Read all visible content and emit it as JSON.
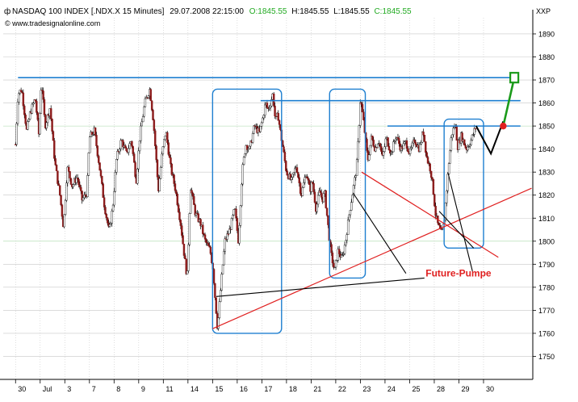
{
  "header": {
    "symbol": "NASDAQ 100 INDEX [.NDX.X  15 Minutes]",
    "datetime": "29.07.2008 22:15:00",
    "open": "O:1845.55",
    "high": "H:1845.55",
    "low": "L:1845.55",
    "close": "C:1845.55",
    "credit": "© www.tradesignalonline.com"
  },
  "colors": {
    "background": "#ffffff",
    "bull_candle": "#ffffff",
    "bear_candle": "#8b1a1a",
    "wick": "#000000",
    "blue_lines": "#1e7fd0",
    "red_lines": "#e02020",
    "black_lines": "#000000",
    "forecast_green": "#1a9a1a",
    "annotation_red": "#e02020",
    "grid": "#c8c8c8",
    "grid_highlight": "#a9d8a9",
    "ohlc_green": "#22aa22"
  },
  "chart_data": {
    "type": "candlestick",
    "title": "NASDAQ 100 INDEX [.NDX.X  15 Minutes]",
    "ylabel": "XXP",
    "xlabel": "",
    "ylim": [
      1740,
      1897
    ],
    "y_ticks": [
      1750,
      1760,
      1770,
      1780,
      1790,
      1800,
      1810,
      1820,
      1830,
      1840,
      1850,
      1860,
      1870,
      1880,
      1890
    ],
    "x_sessions": [
      "30",
      "Jul",
      "3",
      "7",
      "8",
      "9",
      "11",
      "14",
      "15",
      "16",
      "17",
      "18",
      "21",
      "22",
      "23",
      "24",
      "25",
      "28",
      "29",
      "30"
    ],
    "x_labels": [
      "30",
      "Jul",
      "3",
      "7",
      "8",
      "9",
      "11",
      "14",
      "15",
      "16",
      "17",
      "18",
      "21",
      "22",
      "23",
      "24",
      "25",
      "28",
      "29",
      "30"
    ],
    "x_range": [
      -0.5,
      21
    ],
    "grid": true,
    "close_path": [
      [
        0,
        1842
      ],
      [
        0.1,
        1864
      ],
      [
        0.25,
        1866
      ],
      [
        0.45,
        1848
      ],
      [
        0.6,
        1856
      ],
      [
        0.8,
        1862
      ],
      [
        0.95,
        1846
      ],
      [
        1.05,
        1870
      ],
      [
        1.2,
        1850
      ],
      [
        1.4,
        1858
      ],
      [
        1.6,
        1834
      ],
      [
        1.8,
        1820
      ],
      [
        1.95,
        1806
      ],
      [
        2.1,
        1832
      ],
      [
        2.3,
        1824
      ],
      [
        2.5,
        1828
      ],
      [
        2.7,
        1818
      ],
      [
        2.9,
        1821
      ],
      [
        3.0,
        1845
      ],
      [
        3.2,
        1848
      ],
      [
        3.4,
        1833
      ],
      [
        3.6,
        1816
      ],
      [
        3.8,
        1804
      ],
      [
        3.95,
        1815
      ],
      [
        4.1,
        1836
      ],
      [
        4.3,
        1844
      ],
      [
        4.5,
        1838
      ],
      [
        4.7,
        1844
      ],
      [
        4.9,
        1826
      ],
      [
        5.05,
        1846
      ],
      [
        5.25,
        1860
      ],
      [
        5.45,
        1866
      ],
      [
        5.6,
        1852
      ],
      [
        5.8,
        1822
      ],
      [
        5.95,
        1838
      ],
      [
        6.1,
        1848
      ],
      [
        6.3,
        1832
      ],
      [
        6.5,
        1822
      ],
      [
        6.7,
        1808
      ],
      [
        6.85,
        1794
      ],
      [
        6.97,
        1784
      ],
      [
        7.1,
        1824
      ],
      [
        7.3,
        1812
      ],
      [
        7.5,
        1808
      ],
      [
        7.7,
        1800
      ],
      [
        7.9,
        1796
      ],
      [
        8.02,
        1788
      ],
      [
        8.1,
        1776
      ],
      [
        8.2,
        1762
      ],
      [
        8.35,
        1782
      ],
      [
        8.5,
        1800
      ],
      [
        8.7,
        1805
      ],
      [
        8.9,
        1814
      ],
      [
        9.05,
        1800
      ],
      [
        9.2,
        1830
      ],
      [
        9.35,
        1842
      ],
      [
        9.5,
        1840
      ],
      [
        9.7,
        1850
      ],
      [
        9.9,
        1847
      ],
      [
        10.05,
        1854
      ],
      [
        10.15,
        1860
      ],
      [
        10.25,
        1857
      ],
      [
        10.35,
        1860
      ],
      [
        10.45,
        1864
      ],
      [
        10.55,
        1852
      ],
      [
        10.65,
        1855
      ],
      [
        11.0,
        1830
      ],
      [
        11.2,
        1826
      ],
      [
        11.4,
        1833
      ],
      [
        11.6,
        1820
      ],
      [
        11.8,
        1830
      ],
      [
        11.95,
        1822
      ],
      [
        12.05,
        1826
      ],
      [
        12.2,
        1814
      ],
      [
        12.35,
        1822
      ],
      [
        12.45,
        1818
      ],
      [
        12.55,
        1821
      ],
      [
        12.8,
        1795
      ],
      [
        12.95,
        1787
      ],
      [
        13.1,
        1796
      ],
      [
        13.25,
        1792
      ],
      [
        13.4,
        1800
      ],
      [
        13.55,
        1812
      ],
      [
        13.7,
        1822
      ],
      [
        13.85,
        1832
      ],
      [
        13.92,
        1845
      ],
      [
        14.0,
        1862
      ],
      [
        14.08,
        1856
      ],
      [
        14.15,
        1850
      ],
      [
        14.3,
        1835
      ],
      [
        14.45,
        1845
      ],
      [
        14.6,
        1840
      ],
      [
        14.75,
        1844
      ],
      [
        14.9,
        1836
      ],
      [
        15.05,
        1845
      ],
      [
        15.25,
        1838
      ],
      [
        15.45,
        1846
      ],
      [
        15.65,
        1840
      ],
      [
        15.85,
        1843
      ],
      [
        16.0,
        1838
      ],
      [
        16.2,
        1844
      ],
      [
        16.4,
        1840
      ],
      [
        16.55,
        1848
      ],
      [
        16.7,
        1836
      ],
      [
        16.85,
        1831
      ],
      [
        16.95,
        1823
      ],
      [
        17.05,
        1812
      ],
      [
        17.15,
        1807
      ],
      [
        17.3,
        1803
      ],
      [
        17.4,
        1808
      ],
      [
        17.5,
        1822
      ],
      [
        17.6,
        1835
      ],
      [
        17.7,
        1846
      ],
      [
        17.85,
        1851
      ],
      [
        17.95,
        1841
      ],
      [
        18.1,
        1846
      ],
      [
        18.3,
        1840
      ],
      [
        18.5,
        1844
      ],
      [
        18.6,
        1847
      ],
      [
        18.7,
        1850
      ]
    ],
    "forecast_path": [
      [
        18.7,
        1850
      ],
      [
        19.3,
        1838
      ],
      [
        19.8,
        1852
      ]
    ],
    "forecast_target": [
      [
        19.8,
        1850
      ],
      [
        20.25,
        1871
      ]
    ],
    "horizontal_lines": [
      {
        "y": 1871,
        "x": [
          0.1,
          20.35
        ]
      },
      {
        "y": 1861,
        "x": [
          9.95,
          20.5
        ]
      },
      {
        "y": 1850,
        "x": [
          15.1,
          20.5
        ]
      }
    ],
    "boxes": [
      {
        "x": [
          8.0,
          10.8
        ],
        "y": [
          1760,
          1866
        ]
      },
      {
        "x": [
          12.75,
          14.2
        ],
        "y": [
          1784,
          1866
        ]
      },
      {
        "x": [
          17.4,
          19.0
        ],
        "y": [
          1797,
          1853
        ]
      }
    ],
    "red_lines": [
      {
        "from": [
          8.0,
          1762
        ],
        "to": [
          20.95,
          1823
        ]
      },
      {
        "from": [
          14.05,
          1830
        ],
        "to": [
          19.6,
          1793
        ]
      }
    ],
    "black_lines": [
      {
        "from": [
          8.15,
          1776
        ],
        "to": [
          16.6,
          1784
        ]
      },
      {
        "from": [
          13.7,
          1821
        ],
        "to": [
          15.85,
          1786
        ]
      },
      {
        "from": [
          17.2,
          1813
        ],
        "to": [
          18.6,
          1797
        ]
      },
      {
        "from": [
          17.55,
          1830
        ],
        "to": [
          18.55,
          1787
        ]
      }
    ],
    "annotations": [
      {
        "text": "Future-Pumpe",
        "x": 16.65,
        "y": 1786
      }
    ]
  }
}
